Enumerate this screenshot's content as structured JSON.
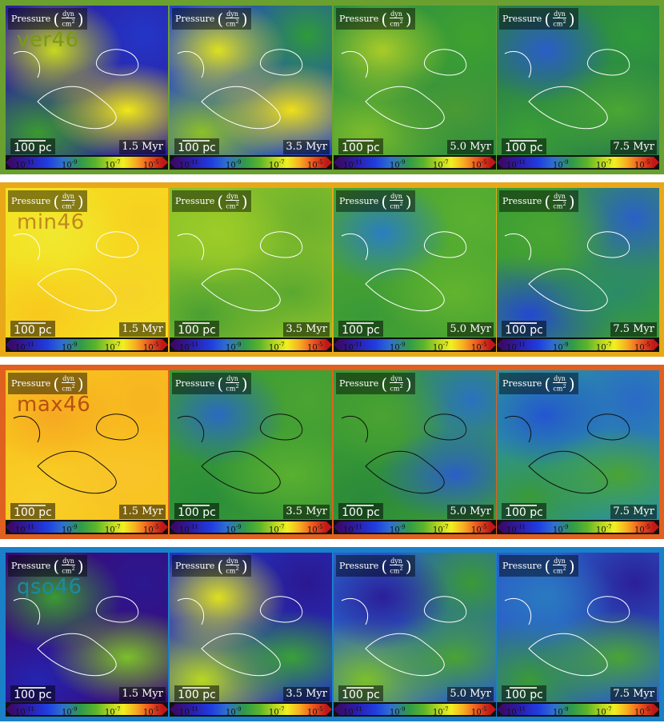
{
  "panel_title": "Pressure",
  "unit_num": "dyn",
  "unit_den": "cm",
  "unit_den_exp": "2",
  "scale_label": "100 pc",
  "colorbar_ticks": [
    {
      "base": "10",
      "exp": "-11"
    },
    {
      "base": "10",
      "exp": "-9"
    },
    {
      "base": "10",
      "exp": "-7"
    },
    {
      "base": "10",
      "exp": "-5"
    }
  ],
  "rows": [
    {
      "name": "ver46",
      "frame_color": "#6aa030",
      "label_color": "#7a9a10",
      "panels": [
        {
          "time": "1.5 Myr",
          "colors": [
            "#2b1fa0",
            "#2436c8",
            "#3a9a30",
            "#c8d820",
            "#f0e818"
          ],
          "contour": "white"
        },
        {
          "time": "3.5 Myr",
          "colors": [
            "#2346c8",
            "#2f9a3a",
            "#8cc028",
            "#dde020",
            "#f0e018"
          ],
          "contour": "white"
        },
        {
          "time": "5.0 Myr",
          "colors": [
            "#2f9040",
            "#3fa22e",
            "#7cbc2a",
            "#a8cc28",
            "#4a9a34"
          ],
          "contour": "white"
        },
        {
          "time": "7.5 Myr",
          "colors": [
            "#2a7e4a",
            "#2f9a3a",
            "#3aa034",
            "#2a5ec8",
            "#4aa832"
          ],
          "contour": "white"
        }
      ]
    },
    {
      "name": "min46",
      "frame_color": "#e8a818",
      "label_color": "#c08820",
      "panels": [
        {
          "time": "1.5 Myr",
          "colors": [
            "#f5e020",
            "#f6d020",
            "#f8c81e",
            "#f0e830",
            "#f6d228"
          ],
          "contour": "white"
        },
        {
          "time": "3.5 Myr",
          "colors": [
            "#8cc22a",
            "#6cb02e",
            "#4aa032",
            "#9ccc28",
            "#5aa830"
          ],
          "contour": "white"
        },
        {
          "time": "5.0 Myr",
          "colors": [
            "#4aa432",
            "#5ab030",
            "#3a9a36",
            "#2a7ec0",
            "#62b42e"
          ],
          "contour": "white"
        },
        {
          "time": "7.5 Myr",
          "colors": [
            "#3a9c34",
            "#2a60c8",
            "#2448d0",
            "#4aa632",
            "#2a8a6a"
          ],
          "contour": "white"
        }
      ]
    },
    {
      "name": "max46",
      "frame_color": "#e06020",
      "label_color": "#b85010",
      "panels": [
        {
          "time": "1.5 Myr",
          "colors": [
            "#f8c41e",
            "#f7b420",
            "#f8d028",
            "#f6a822",
            "#f8c42a"
          ],
          "contour": "black"
        },
        {
          "time": "3.5 Myr",
          "colors": [
            "#3a9a34",
            "#4aa432",
            "#2a8e3a",
            "#2a6ac0",
            "#5ab030"
          ],
          "contour": "black"
        },
        {
          "time": "5.0 Myr",
          "colors": [
            "#3a9a34",
            "#2a72c0",
            "#2a8a3a",
            "#4aa232",
            "#2a5ec8"
          ],
          "contour": "black"
        },
        {
          "time": "7.5 Myr",
          "colors": [
            "#2a90a0",
            "#2a6ac8",
            "#3a9a38",
            "#2456d0",
            "#4aa434"
          ],
          "contour": "black"
        }
      ]
    },
    {
      "name": "qso46",
      "frame_color": "#1a80c8",
      "label_color": "#1a8aa0",
      "panels": [
        {
          "time": "1.5 Myr",
          "colors": [
            "#3a0a7a",
            "#2b1890",
            "#2424b0",
            "#3a9a34",
            "#7cc02a"
          ],
          "contour": "white"
        },
        {
          "time": "3.5 Myr",
          "colors": [
            "#2432c0",
            "#2b1890",
            "#b8d820",
            "#dfe020",
            "#3aa036"
          ],
          "contour": "white"
        },
        {
          "time": "5.0 Myr",
          "colors": [
            "#2a5ec8",
            "#3a9a36",
            "#7cc02a",
            "#2b1f98",
            "#4aa432"
          ],
          "contour": "white"
        },
        {
          "time": "7.5 Myr",
          "colors": [
            "#2a5ec8",
            "#2b1f98",
            "#3a9a36",
            "#2a7ac0",
            "#4aa434"
          ],
          "contour": "white"
        }
      ]
    }
  ]
}
